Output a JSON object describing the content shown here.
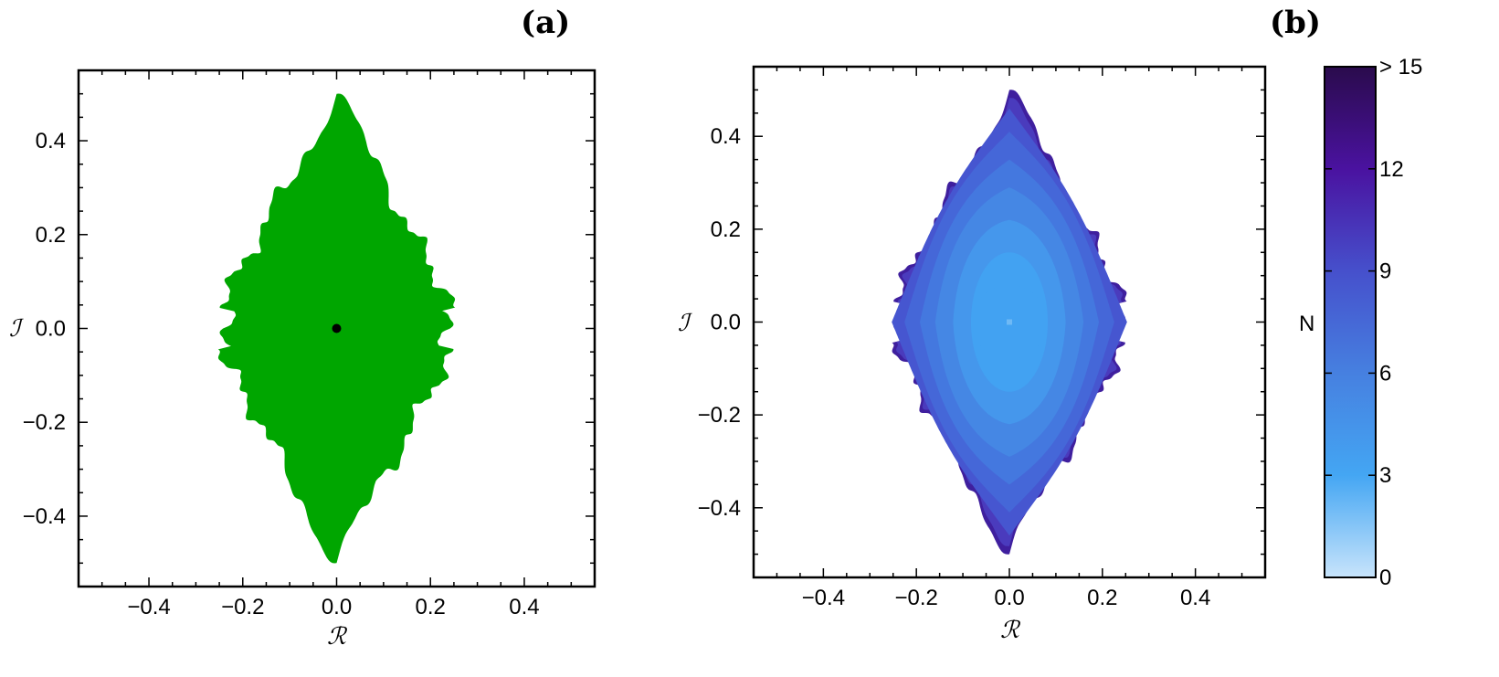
{
  "chart_data": [
    {
      "type": "region",
      "panel_label": "(a)",
      "xlabel": "ℛ",
      "ylabel": "ℐ",
      "xlim": [
        -0.55,
        0.55
      ],
      "ylim": [
        -0.55,
        0.55
      ],
      "x_ticks": [
        -0.4,
        -0.2,
        0.0,
        0.2,
        0.4
      ],
      "x_tick_labels": [
        "−0.4",
        "−0.2",
        "0.0",
        "0.2",
        "0.4"
      ],
      "y_ticks": [
        -0.4,
        -0.2,
        0.0,
        0.2,
        0.4
      ],
      "y_tick_labels": [
        "−0.4",
        "−0.2",
        "0.0",
        "0.2",
        "0.4"
      ],
      "region_color": "#00a600",
      "region_extent": {
        "x": [
          -0.275,
          0.275
        ],
        "y": [
          -0.5,
          0.5
        ]
      },
      "marker": {
        "x": 0.0,
        "y": 0.0,
        "color": "#000000"
      },
      "grid": false
    },
    {
      "type": "heatmap",
      "panel_label": "(b)",
      "xlabel": "ℛ",
      "ylabel": "ℐ",
      "xlim": [
        -0.55,
        0.55
      ],
      "ylim": [
        -0.55,
        0.55
      ],
      "x_ticks": [
        -0.4,
        -0.2,
        0.0,
        0.2,
        0.4
      ],
      "x_tick_labels": [
        "−0.4",
        "−0.2",
        "0.0",
        "0.2",
        "0.4"
      ],
      "y_ticks": [
        -0.4,
        -0.2,
        0.0,
        0.2,
        0.4
      ],
      "y_tick_labels": [
        "−0.4",
        "−0.2",
        "0.0",
        "0.2",
        "0.4"
      ],
      "region_extent": {
        "x": [
          -0.275,
          0.275
        ],
        "y": [
          -0.5,
          0.5
        ]
      },
      "contour_levels": [
        5,
        6,
        7,
        8,
        9,
        10,
        11
      ],
      "level_colors": [
        "#42a2f2",
        "#4597ec",
        "#4587e4",
        "#4478df",
        "#4567d8",
        "#4656d0",
        "#4a3bbd"
      ],
      "colorbar": {
        "title": "N",
        "range": [
          0,
          15
        ],
        "ticks": [
          0,
          3,
          6,
          9,
          12,
          15
        ],
        "tick_labels": [
          "0",
          "3",
          "6",
          "9",
          "12",
          "> 15"
        ],
        "stops": [
          "#c8e4fb",
          "#44a6f3",
          "#4680e0",
          "#4650cc",
          "#4a12a0",
          "#2a0b4c"
        ]
      },
      "grid": false
    }
  ]
}
